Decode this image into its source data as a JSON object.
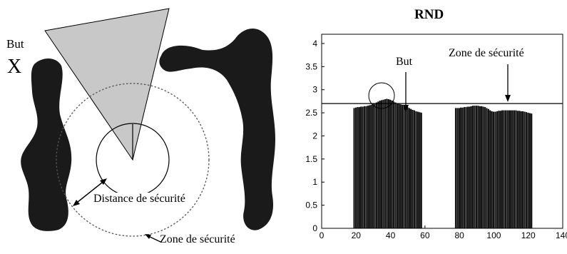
{
  "left_panel": {
    "goal_label": "But",
    "goal_marker": "X",
    "distance_label": "Distance de sécurité",
    "zone_label": "Zone de sécurité"
  },
  "right_panel": {
    "title": "RND",
    "goal_label": "But",
    "zone_label": "Zone de sécurité"
  },
  "chart_data": {
    "type": "bar",
    "title": "RND",
    "xlim": [
      0,
      140
    ],
    "ylim": [
      0,
      4.2
    ],
    "x_ticks": [
      0,
      20,
      40,
      60,
      80,
      100,
      120,
      140
    ],
    "y_ticks": [
      0,
      0.5,
      1,
      1.5,
      2,
      2.5,
      3,
      3.5,
      4
    ],
    "threshold": 2.7,
    "series": [
      {
        "x": [
          19,
          20,
          21,
          22,
          23,
          24,
          25,
          26,
          27,
          28,
          29,
          30,
          31,
          32,
          33,
          34,
          35,
          36,
          37,
          38,
          39,
          40,
          41,
          42,
          43,
          44,
          45,
          46,
          47,
          48,
          49,
          50,
          51,
          52,
          53,
          54,
          55,
          56,
          57,
          58
        ],
        "values": [
          2.6,
          2.61,
          2.62,
          2.62,
          2.63,
          2.63,
          2.64,
          2.64,
          2.65,
          2.66,
          2.67,
          2.69,
          2.7,
          2.72,
          2.74,
          2.76,
          2.77,
          2.78,
          2.79,
          2.8,
          2.79,
          2.78,
          2.76,
          2.74,
          2.72,
          2.7,
          2.69,
          2.68,
          2.67,
          2.65,
          2.63,
          2.62,
          2.6,
          2.58,
          2.56,
          2.55,
          2.53,
          2.52,
          2.51,
          2.5
        ]
      },
      {
        "x": [
          78,
          79,
          80,
          81,
          82,
          83,
          84,
          85,
          86,
          87,
          88,
          89,
          90,
          91,
          92,
          93,
          94,
          95,
          96,
          97,
          98,
          99,
          100,
          101,
          102,
          103,
          104,
          105,
          106,
          107,
          108,
          109,
          110,
          111,
          112,
          113,
          114,
          115,
          116,
          117,
          118,
          119,
          120,
          121,
          122
        ],
        "values": [
          2.6,
          2.6,
          2.6,
          2.61,
          2.61,
          2.62,
          2.62,
          2.63,
          2.63,
          2.64,
          2.65,
          2.65,
          2.65,
          2.65,
          2.64,
          2.64,
          2.63,
          2.62,
          2.6,
          2.58,
          2.55,
          2.53,
          2.52,
          2.52,
          2.53,
          2.54,
          2.54,
          2.55,
          2.55,
          2.55,
          2.55,
          2.55,
          2.55,
          2.55,
          2.55,
          2.55,
          2.54,
          2.54,
          2.53,
          2.53,
          2.52,
          2.51,
          2.5,
          2.49,
          2.48
        ]
      }
    ]
  }
}
